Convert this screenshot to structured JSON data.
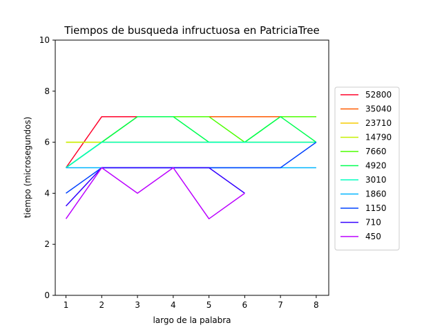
{
  "chart_data": {
    "type": "line",
    "title": "Tiempos de busqueda infructuosa en PatriciaTree",
    "xlabel": "largo de la palabra",
    "ylabel": "tiempo (microsegundos)",
    "xlim": [
      0.7,
      8.35
    ],
    "ylim": [
      0,
      10
    ],
    "xticks": [
      1,
      2,
      3,
      4,
      5,
      6,
      7,
      8
    ],
    "yticks": [
      0,
      2,
      4,
      6,
      8,
      10
    ],
    "grid": false,
    "legend_position": "right",
    "series": [
      {
        "name": "52800",
        "color": "#ff0029",
        "x": [
          1,
          2,
          3,
          4,
          5,
          6,
          7,
          8
        ],
        "y": [
          5,
          7,
          7,
          7,
          7,
          7,
          7,
          7
        ]
      },
      {
        "name": "35040",
        "color": "#ff5a00",
        "x": [
          1,
          2,
          3,
          4,
          5,
          6,
          7,
          8
        ],
        "y": [
          5,
          6,
          7,
          7,
          7,
          7,
          7,
          7
        ]
      },
      {
        "name": "23710",
        "color": "#f5cc00",
        "x": [
          1,
          2,
          3,
          4,
          5,
          6,
          7,
          8
        ],
        "y": [
          6,
          6,
          6,
          6,
          6,
          6,
          6,
          6
        ]
      },
      {
        "name": "14790",
        "color": "#c6f000",
        "x": [
          1,
          2,
          3,
          4,
          5,
          6,
          7,
          8
        ],
        "y": [
          6,
          6,
          6,
          6,
          6,
          6,
          6,
          6
        ]
      },
      {
        "name": "7660",
        "color": "#4cff00",
        "x": [
          1,
          2,
          3,
          4,
          5,
          6,
          7,
          8
        ],
        "y": [
          5,
          6,
          7,
          7,
          7,
          6,
          7,
          7
        ]
      },
      {
        "name": "4920",
        "color": "#00ff52",
        "x": [
          1,
          2,
          3,
          4,
          5,
          6,
          7,
          8
        ],
        "y": [
          5,
          6,
          7,
          7,
          6,
          6,
          7,
          6
        ]
      },
      {
        "name": "3010",
        "color": "#00ffc1",
        "x": [
          1,
          2,
          3,
          4,
          5,
          6,
          7,
          8
        ],
        "y": [
          5,
          6,
          6,
          6,
          6,
          6,
          6,
          6
        ]
      },
      {
        "name": "1860",
        "color": "#00b5ff",
        "x": [
          1,
          2,
          3,
          4,
          5,
          6,
          7,
          8
        ],
        "y": [
          5,
          5,
          5,
          5,
          5,
          5,
          5,
          5
        ]
      },
      {
        "name": "1150",
        "color": "#0042ff",
        "x": [
          1,
          2,
          3,
          4,
          5,
          6,
          7,
          8
        ],
        "y": [
          4,
          5,
          5,
          5,
          5,
          5,
          5,
          6
        ]
      },
      {
        "name": "710",
        "color": "#3300ff",
        "x": [
          1,
          2,
          3,
          4,
          5,
          6
        ],
        "y": [
          3.5,
          5,
          5,
          5,
          5,
          4
        ]
      },
      {
        "name": "450",
        "color": "#bb00ff",
        "x": [
          1,
          2,
          3,
          4,
          5,
          6
        ],
        "y": [
          3,
          5,
          4,
          5,
          3,
          4
        ]
      }
    ]
  }
}
